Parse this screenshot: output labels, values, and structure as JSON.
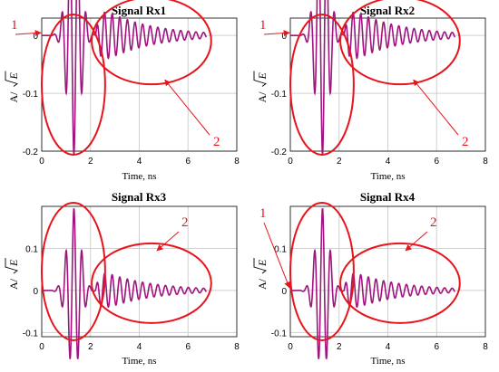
{
  "colors": {
    "signal": "#a0147f",
    "annotation": "#e8141c",
    "grid": "#d0d0d0",
    "axis": "#000000"
  },
  "chart_data": [
    {
      "type": "line",
      "title": "Signal Rx1",
      "xlabel": "Time, ns",
      "ylabel_prefix": "A/",
      "ylabel_root": "E",
      "xlim": [
        0,
        8
      ],
      "ylim": [
        -0.2,
        0.03
      ],
      "xticks": [
        0,
        2,
        4,
        6,
        8
      ],
      "yticks": [
        0,
        -0.1,
        -0.2
      ],
      "ytick_labels": [
        "0",
        "-0.1",
        "-0.2"
      ],
      "grid": true,
      "series": [
        {
          "polarity": -1,
          "main_amp": 0.205,
          "tail_amp": 0.032,
          "x_end": 6.75
        }
      ],
      "annotations": [
        {
          "label": "1",
          "target": "main-pulse-onset"
        },
        {
          "label": "2",
          "target": "tail-oscillations"
        }
      ]
    },
    {
      "type": "line",
      "title": "Signal Rx2",
      "xlabel": "Time, ns",
      "ylabel_prefix": "A/",
      "ylabel_root": "E",
      "xlim": [
        0,
        8
      ],
      "ylim": [
        -0.2,
        0.03
      ],
      "xticks": [
        0,
        2,
        4,
        6,
        8
      ],
      "yticks": [
        0,
        -0.1,
        -0.2
      ],
      "ytick_labels": [
        "0",
        "-0.1",
        "-0.2"
      ],
      "grid": true,
      "series": [
        {
          "polarity": -1,
          "main_amp": 0.205,
          "tail_amp": 0.032,
          "x_end": 6.75
        }
      ],
      "annotations": [
        {
          "label": "1",
          "target": "main-pulse-onset"
        },
        {
          "label": "2",
          "target": "tail-oscillations"
        }
      ]
    },
    {
      "type": "line",
      "title": "Signal Rx3",
      "xlabel": "Time, ns",
      "ylabel_prefix": "A/",
      "ylabel_root": "E",
      "xlim": [
        0,
        8
      ],
      "ylim": [
        -0.11,
        0.2
      ],
      "xticks": [
        0,
        2,
        4,
        6,
        8
      ],
      "yticks": [
        0.1,
        0,
        -0.1
      ],
      "ytick_labels": [
        "0.1",
        "0",
        "-0.1"
      ],
      "grid": true,
      "series": [
        {
          "polarity": 1,
          "main_amp": 0.195,
          "tail_amp": 0.032,
          "x_end": 6.75
        }
      ],
      "annotations": [
        {
          "label": "2",
          "target": "tail-oscillations"
        }
      ]
    },
    {
      "type": "line",
      "title": "Signal Rx4",
      "xlabel": "Time, ns",
      "ylabel_prefix": "A/",
      "ylabel_root": "E",
      "xlim": [
        0,
        8
      ],
      "ylim": [
        -0.11,
        0.2
      ],
      "xticks": [
        0,
        2,
        4,
        6,
        8
      ],
      "yticks": [
        0.1,
        0,
        -0.1
      ],
      "ytick_labels": [
        "0.1",
        "0",
        "-0.1"
      ],
      "grid": true,
      "series": [
        {
          "polarity": 1,
          "main_amp": 0.195,
          "tail_amp": 0.032,
          "x_end": 6.75
        }
      ],
      "annotations": [
        {
          "label": "1",
          "target": "main-pulse-onset"
        },
        {
          "label": "2",
          "target": "tail-oscillations"
        }
      ]
    }
  ]
}
